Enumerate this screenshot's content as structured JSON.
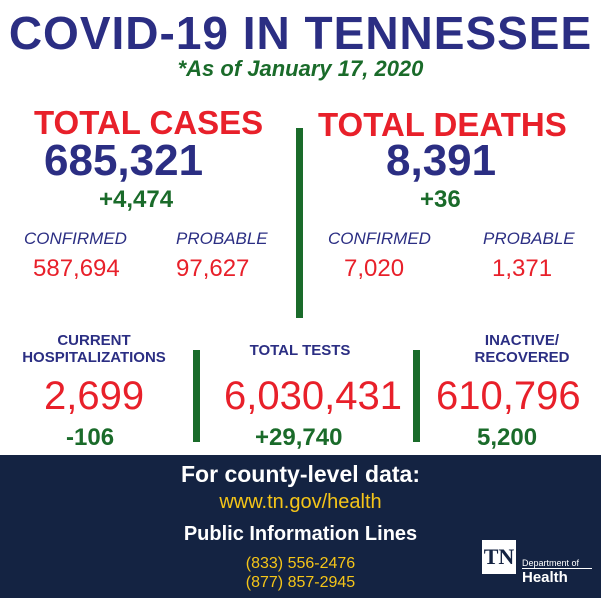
{
  "header": {
    "title": "COVID-19 IN TENNESSEE",
    "date": "*As of January 17, 2020"
  },
  "total_cases": {
    "label": "TOTAL CASES",
    "value": "685,321",
    "change": "+4,474",
    "confirmed_label": "CONFIRMED",
    "confirmed_value": "587,694",
    "probable_label": "PROBABLE",
    "probable_value": "97,627"
  },
  "total_deaths": {
    "label": "TOTAL DEATHS",
    "value": "8,391",
    "change": "+36",
    "confirmed_label": "CONFIRMED",
    "confirmed_value": "7,020",
    "probable_label": "PROBABLE",
    "probable_value": "1,371"
  },
  "hospitalizations": {
    "label_line1": "CURRENT",
    "label_line2": "HOSPITALIZATIONS",
    "value": "2,699",
    "change": "-106"
  },
  "total_tests": {
    "label": "TOTAL TESTS",
    "value": "6,030,431",
    "change": "+29,740"
  },
  "inactive_recovered": {
    "label_line1": "INACTIVE/",
    "label_line2": "RECOVERED",
    "value": "610,796",
    "change": "5,200"
  },
  "footer": {
    "county_heading": "For county-level data:",
    "url": "www.tn.gov/health",
    "info_heading": "Public Information Lines",
    "phones": [
      "(833) 556-2476",
      "(877) 857-2945"
    ],
    "logo_mark": "TN",
    "logo_dept": "Department of",
    "logo_health": "Health"
  },
  "colors": {
    "navy": "#2b2e83",
    "red": "#e8202a",
    "green": "#1a6b2a",
    "footer_bg": "#142342",
    "yellow": "#f5c518"
  }
}
